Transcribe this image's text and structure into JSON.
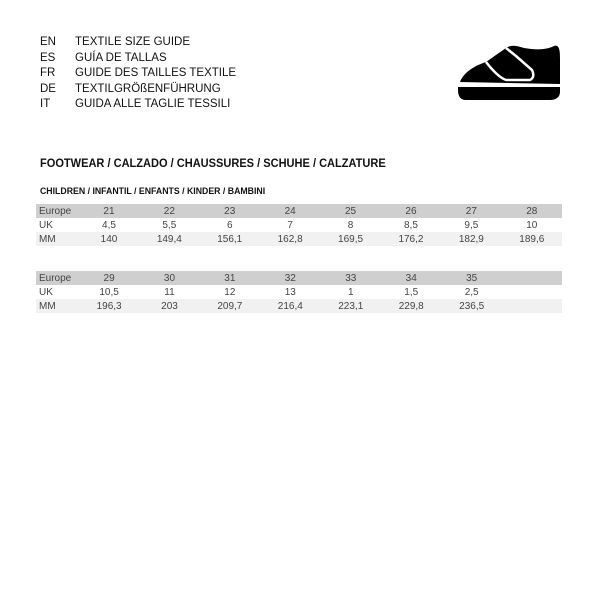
{
  "languages": [
    {
      "code": "EN",
      "label": "TEXTILE SIZE GUIDE"
    },
    {
      "code": "ES",
      "label": "GUÍA DE TALLAS"
    },
    {
      "code": "FR",
      "label": "GUIDE DES TAILLES TEXTILE"
    },
    {
      "code": "DE",
      "label": "TEXTILGRÖßENFÜHRUNG"
    },
    {
      "code": "IT",
      "label": "GUIDA ALLE TAGLIE TESSILI"
    }
  ],
  "icon": "shoe-icon",
  "section_title": "FOOTWEAR / CALZADO / CHAUSSURES / SCHUHE / CALZATURE",
  "subsection_title": "CHILDREN / INFANTIL / ENFANTS / KINDER / BAMBINI",
  "tables": [
    {
      "rows": [
        {
          "label": "Europe",
          "values": [
            "21",
            "22",
            "23",
            "24",
            "25",
            "26",
            "27",
            "28"
          ]
        },
        {
          "label": "UK",
          "values": [
            "4,5",
            "5,5",
            "6",
            "7",
            "8",
            "8,5",
            "9,5",
            "10"
          ]
        },
        {
          "label": "MM",
          "values": [
            "140",
            "149,4",
            "156,1",
            "162,8",
            "169,5",
            "176,2",
            "182,9",
            "189,6"
          ]
        }
      ]
    },
    {
      "rows": [
        {
          "label": "Europe",
          "values": [
            "29",
            "30",
            "31",
            "32",
            "33",
            "34",
            "35",
            ""
          ]
        },
        {
          "label": "UK",
          "values": [
            "10,5",
            "11",
            "12",
            "13",
            "1",
            "1,5",
            "2,5",
            ""
          ]
        },
        {
          "label": "MM",
          "values": [
            "196,3",
            "203",
            "209,7",
            "216,4",
            "223,1",
            "229,8",
            "236,5",
            ""
          ]
        }
      ]
    }
  ]
}
